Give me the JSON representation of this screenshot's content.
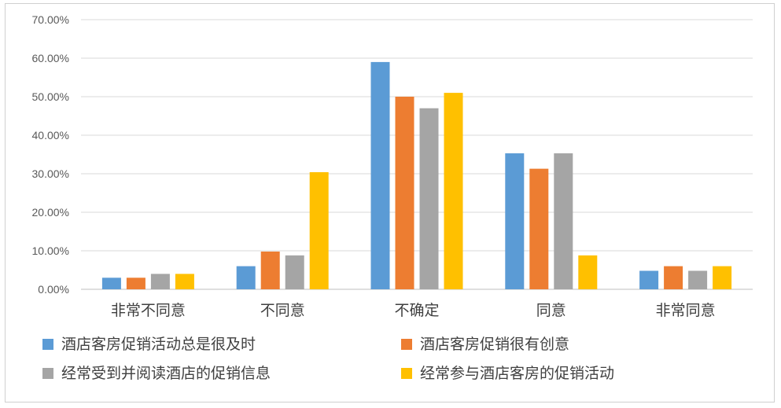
{
  "chart_data": {
    "type": "bar",
    "categories": [
      "非常不同意",
      "不同意",
      "不确定",
      "同意",
      "非常同意"
    ],
    "y_ticks": [
      "0.00%",
      "10.00%",
      "20.00%",
      "30.00%",
      "40.00%",
      "50.00%",
      "60.00%",
      "70.00%"
    ],
    "ylim": [
      0,
      0.7
    ],
    "grid": true,
    "legend_position": "bottom",
    "series": [
      {
        "name": "酒店客房促销活动总是很及时",
        "color": "#5B9BD5",
        "values": [
          0.03,
          0.06,
          0.59,
          0.353,
          0.048
        ]
      },
      {
        "name": "酒店客房促销很有创意",
        "color": "#ED7D31",
        "values": [
          0.03,
          0.098,
          0.5,
          0.313,
          0.06
        ]
      },
      {
        "name": "经常受到并阅读酒店的促销信息",
        "color": "#A5A5A5",
        "values": [
          0.04,
          0.088,
          0.47,
          0.353,
          0.048
        ]
      },
      {
        "name": "经常参与酒店客房的促销活动",
        "color": "#FFC000",
        "values": [
          0.04,
          0.304,
          0.51,
          0.088,
          0.06
        ]
      }
    ]
  }
}
